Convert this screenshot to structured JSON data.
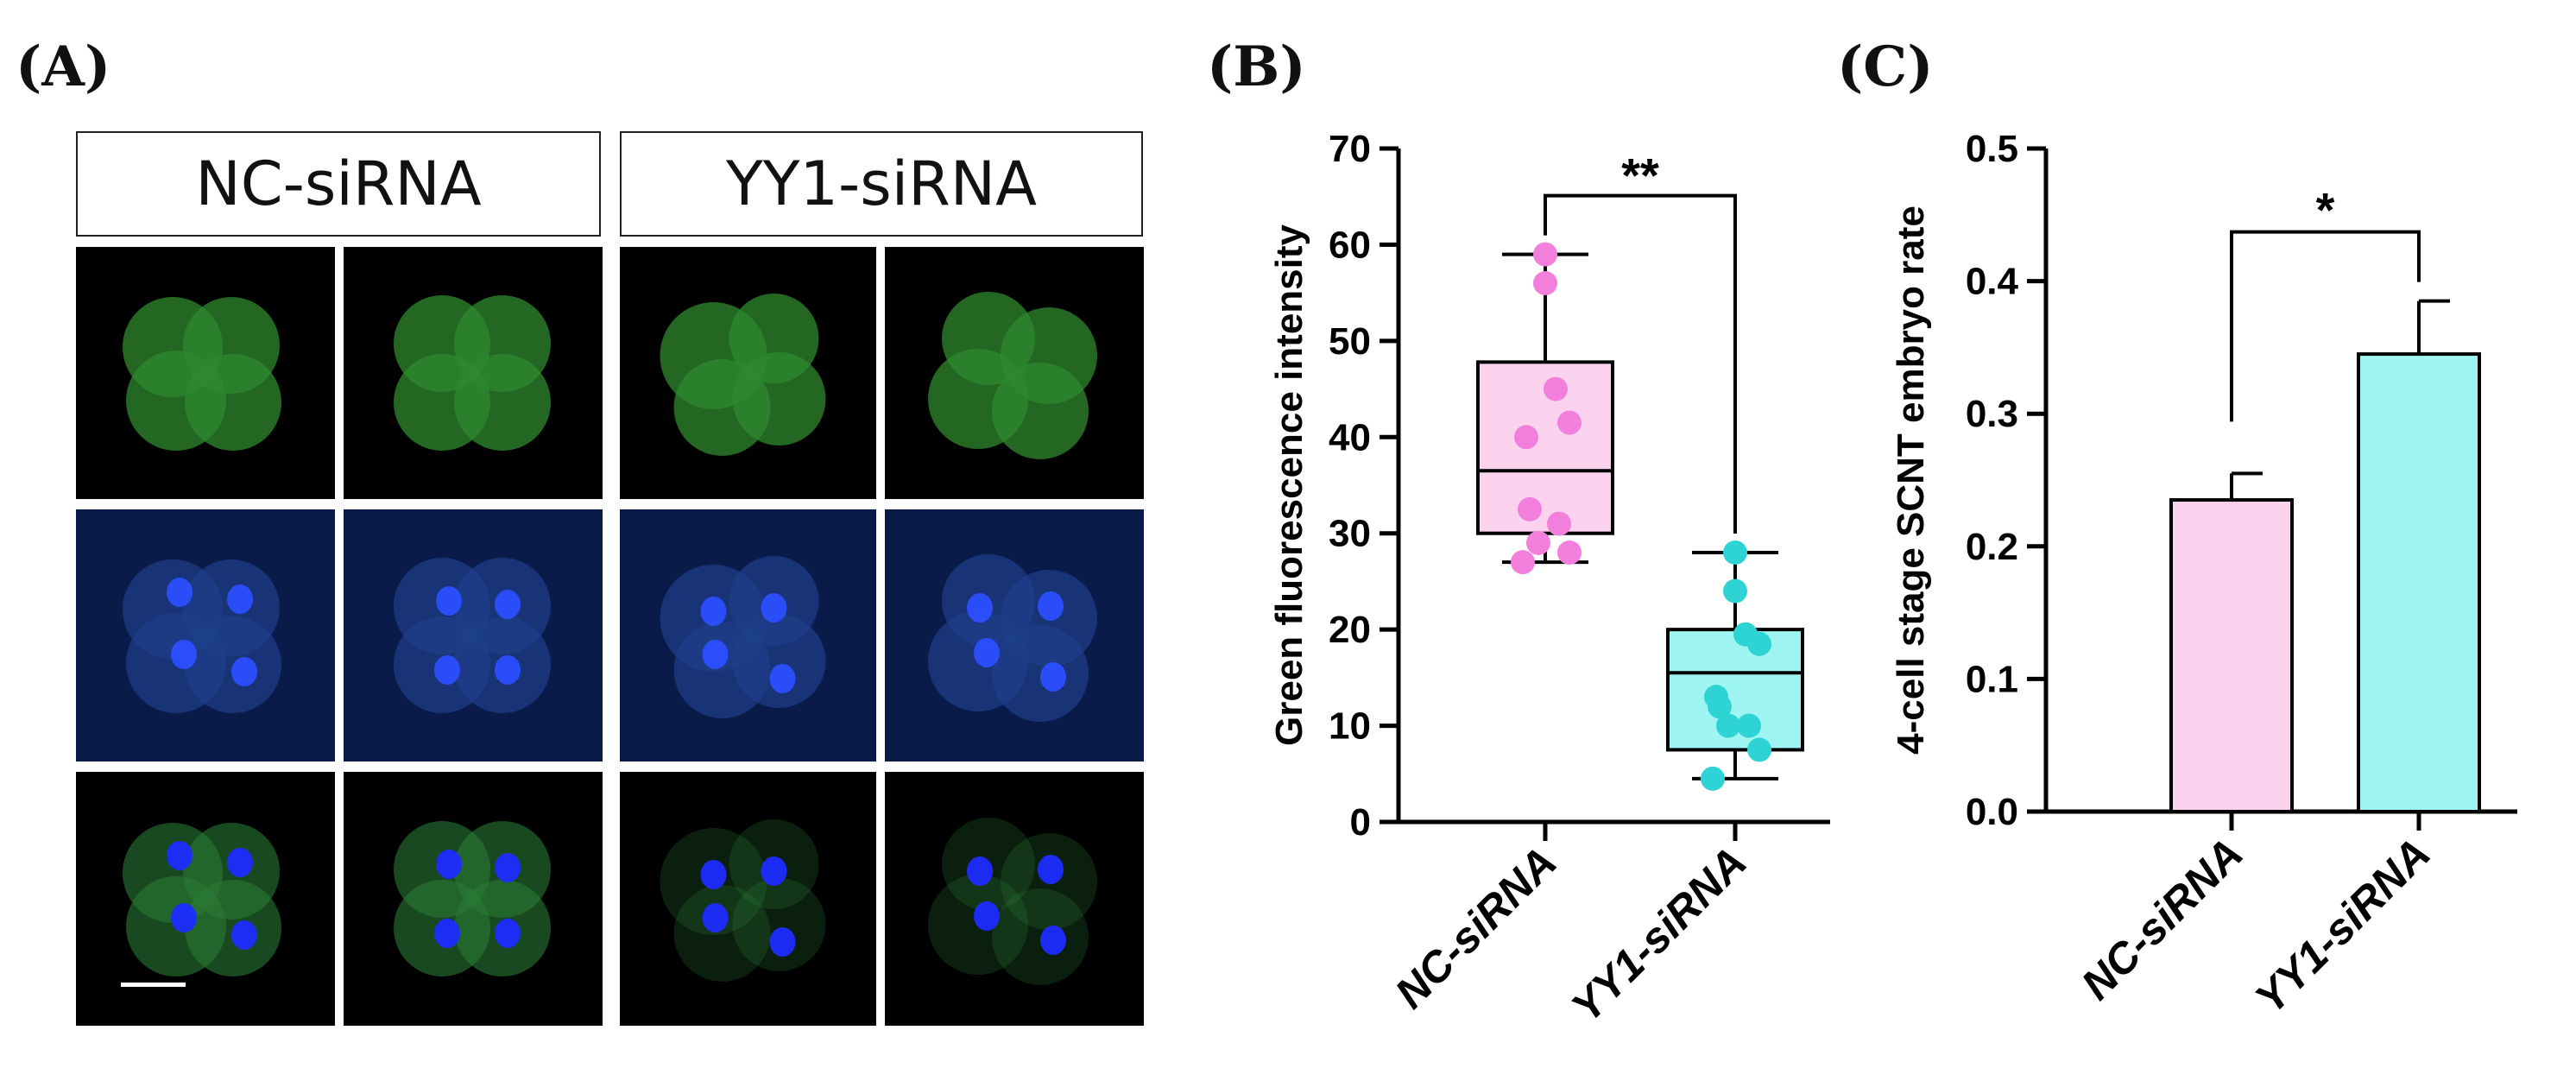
{
  "panels": {
    "a": {
      "letter": "(A)",
      "group_headers": [
        "NC-siRNA",
        "YY1-siRNA"
      ],
      "rows": [
        "green",
        "blue",
        "merge"
      ],
      "colors": {
        "green": "#2f8a2f",
        "blue": "#2b4fff",
        "merge_green": "#2a7a36",
        "merge_blue": "#1d2cff"
      }
    },
    "b": {
      "letter": "(B)"
    },
    "c": {
      "letter": "(C)"
    }
  },
  "chart_data": [
    {
      "id": "B",
      "type": "box",
      "ylabel": "Green fluorescence intensity",
      "ylim": [
        0,
        70
      ],
      "yticks": [
        0,
        10,
        20,
        30,
        40,
        50,
        60,
        70
      ],
      "categories": [
        "NC-siRNA",
        "YY1-siRNA"
      ],
      "series": [
        {
          "category": "NC-siRNA",
          "color": "#f27fdb",
          "fill": "#fbd3ee",
          "box": {
            "min": 27,
            "q1": 30,
            "median": 36.5,
            "q3": 47.8,
            "max": 59
          },
          "points": [
            59,
            56,
            45,
            41.5,
            40,
            32.5,
            31,
            29,
            28,
            27
          ]
        },
        {
          "category": "YY1-siRNA",
          "color": "#2ed4d4",
          "fill": "#9ff5f2",
          "box": {
            "min": 4.5,
            "q1": 7.5,
            "median": 15.5,
            "q3": 20,
            "max": 28
          },
          "points": [
            28,
            24,
            19.5,
            18.5,
            13,
            12,
            10,
            10,
            7.5,
            4.5
          ]
        }
      ],
      "annotation": {
        "text": "**",
        "between": [
          "NC-siRNA",
          "YY1-siRNA"
        ]
      }
    },
    {
      "id": "C",
      "type": "bar",
      "ylabel": "4-cell stage SCNT embryo rate",
      "ylim": [
        0,
        0.5
      ],
      "yticks": [
        "0.0",
        "0.1",
        "0.2",
        "0.3",
        "0.4",
        "0.5"
      ],
      "categories": [
        "NC-siRNA",
        "YY1-siRNA"
      ],
      "values": [
        0.235,
        0.345
      ],
      "errors": [
        0.02,
        0.04
      ],
      "colors": [
        "#fbd3ee",
        "#9ff5f2"
      ],
      "annotation": {
        "text": "*",
        "between": [
          "NC-siRNA",
          "YY1-siRNA"
        ]
      }
    }
  ]
}
